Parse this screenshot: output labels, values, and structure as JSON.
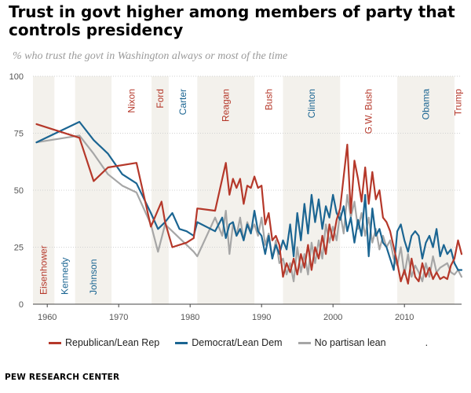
{
  "title": "Trust in govt higher among members of party that controls presidency",
  "subtitle": "% who trust the govt in Washington always or most of the time",
  "footer": "PEW RESEARCH CENTER",
  "legend_extra": ".",
  "colors": {
    "republican": "#b5382a",
    "democrat": "#1b6592",
    "no_partisan": "#a6a6a6",
    "shade": "#f3f1ec",
    "axis_text": "#555555",
    "grid": "#d2d2d2"
  },
  "chart_data": {
    "type": "line",
    "title": "Trust in govt higher among members of party that controls presidency",
    "subtitle": "% who trust the govt in Washington always or most of the time",
    "xlim": [
      1958,
      2018
    ],
    "ylim": [
      0,
      100
    ],
    "x_ticks": [
      1960,
      1970,
      1980,
      1990,
      2000,
      2010
    ],
    "y_ticks": [
      0,
      25,
      50,
      75,
      100
    ],
    "grid": true,
    "legend_position": "bottom",
    "presidents": [
      {
        "name": "Eisenhower",
        "party": "R",
        "start": 1958,
        "end": 1961,
        "shaded": true
      },
      {
        "name": "Kennedy",
        "party": "D",
        "start": 1961,
        "end": 1963.9,
        "shaded": false
      },
      {
        "name": "Johnson",
        "party": "D",
        "start": 1963.9,
        "end": 1969,
        "shaded": true
      },
      {
        "name": "Nixon",
        "party": "R",
        "start": 1969,
        "end": 1974.6,
        "shaded": false
      },
      {
        "name": "Ford",
        "party": "R",
        "start": 1974.6,
        "end": 1977,
        "shaded": true
      },
      {
        "name": "Carter",
        "party": "D",
        "start": 1977,
        "end": 1981,
        "shaded": false
      },
      {
        "name": "Reagan",
        "party": "R",
        "start": 1981,
        "end": 1989,
        "shaded": true
      },
      {
        "name": "Bush",
        "party": "R",
        "start": 1989,
        "end": 1993,
        "shaded": false
      },
      {
        "name": "Clinton",
        "party": "D",
        "start": 1993,
        "end": 2001,
        "shaded": true
      },
      {
        "name": "G.W. Bush",
        "party": "R",
        "start": 2001,
        "end": 2009,
        "shaded": false
      },
      {
        "name": "Obama",
        "party": "D",
        "start": 2009,
        "end": 2017,
        "shaded": true
      },
      {
        "name": "Trump",
        "party": "R",
        "start": 2017,
        "end": 2018,
        "shaded": false
      }
    ],
    "series": [
      {
        "name": "Republican/Lean Rep",
        "color": "#b5382a",
        "x": [
          1958.5,
          1964.5,
          1966.5,
          1968.5,
          1972.5,
          1974.5,
          1976.0,
          1976.5,
          1977.5,
          1978.5,
          1979.5,
          1980.5,
          1981.0,
          1983.5,
          1984.5,
          1985.0,
          1985.5,
          1986.0,
          1986.5,
          1987.0,
          1987.5,
          1988.0,
          1988.5,
          1989.0,
          1989.5,
          1990.0,
          1990.5,
          1991.0,
          1991.5,
          1992.0,
          1992.5,
          1993.0,
          1993.5,
          1994.0,
          1994.5,
          1995.0,
          1995.5,
          1996.0,
          1996.5,
          1997.0,
          1997.5,
          1998.0,
          1998.5,
          1999.0,
          1999.5,
          2000.0,
          2000.5,
          2001.0,
          2001.5,
          2002.0,
          2002.5,
          2003.0,
          2003.5,
          2004.0,
          2004.5,
          2005.0,
          2005.5,
          2006.0,
          2006.5,
          2007.0,
          2007.5,
          2008.0,
          2008.5,
          2009.0,
          2009.5,
          2010.0,
          2010.5,
          2011.0,
          2011.5,
          2012.0,
          2012.5,
          2013.0,
          2013.5,
          2014.0,
          2014.5,
          2015.0,
          2015.5,
          2016.0,
          2016.5,
          2017.0,
          2017.5,
          2018.0
        ],
        "y": [
          79,
          73,
          54,
          60,
          62,
          34,
          45,
          36,
          25,
          26,
          27,
          29,
          42,
          41,
          55,
          62,
          48,
          55,
          51,
          55,
          44,
          52,
          51,
          56,
          51,
          52,
          35,
          40,
          28,
          30,
          26,
          12,
          18,
          14,
          20,
          13,
          22,
          16,
          26,
          15,
          25,
          20,
          30,
          22,
          35,
          28,
          37,
          42,
          56,
          70,
          40,
          63,
          55,
          45,
          60,
          44,
          58,
          46,
          50,
          38,
          36,
          32,
          25,
          18,
          10,
          15,
          9,
          20,
          12,
          10,
          18,
          12,
          16,
          11,
          14,
          11,
          12,
          11,
          17,
          20,
          28,
          22
        ]
      },
      {
        "name": "Democrat/Lean Dem",
        "color": "#1b6592",
        "x": [
          1958.5,
          1964.5,
          1966.5,
          1968.5,
          1970.5,
          1972.5,
          1974.5,
          1975.5,
          1976.5,
          1977.5,
          1978.5,
          1979.5,
          1980.5,
          1981.0,
          1983.5,
          1984.5,
          1985.0,
          1985.5,
          1986.0,
          1986.5,
          1987.0,
          1987.5,
          1988.0,
          1988.5,
          1989.0,
          1989.5,
          1990.0,
          1990.5,
          1991.0,
          1991.5,
          1992.0,
          1992.5,
          1993.0,
          1993.5,
          1994.0,
          1994.5,
          1995.0,
          1995.5,
          1996.0,
          1996.5,
          1997.0,
          1997.5,
          1998.0,
          1998.5,
          1999.0,
          1999.5,
          2000.0,
          2000.5,
          2001.0,
          2001.5,
          2002.0,
          2002.5,
          2003.0,
          2003.5,
          2004.0,
          2004.5,
          2005.0,
          2005.5,
          2006.0,
          2006.5,
          2007.0,
          2007.5,
          2008.0,
          2008.5,
          2009.0,
          2009.5,
          2010.0,
          2010.5,
          2011.0,
          2011.5,
          2012.0,
          2012.5,
          2013.0,
          2013.5,
          2014.0,
          2014.5,
          2015.0,
          2015.5,
          2016.0,
          2016.5,
          2017.0,
          2017.5,
          2018.0
        ],
        "y": [
          71,
          80,
          72,
          66,
          57,
          53,
          40,
          33,
          36,
          40,
          33,
          32,
          30,
          36,
          32,
          38,
          29,
          35,
          36,
          30,
          33,
          28,
          35,
          31,
          41,
          32,
          30,
          22,
          30,
          20,
          26,
          22,
          28,
          24,
          35,
          21,
          40,
          28,
          44,
          31,
          48,
          36,
          46,
          33,
          43,
          38,
          48,
          40,
          37,
          43,
          32,
          38,
          27,
          37,
          30,
          48,
          21,
          42,
          30,
          33,
          27,
          25,
          20,
          15,
          32,
          35,
          28,
          23,
          30,
          32,
          30,
          20,
          27,
          30,
          25,
          33,
          21,
          26,
          22,
          24,
          18,
          15,
          15
        ]
      },
      {
        "name": "No partisan lean",
        "color": "#a6a6a6",
        "x": [
          1958.5,
          1964.5,
          1966.5,
          1968.5,
          1970.5,
          1972.5,
          1974.5,
          1975.5,
          1976.5,
          1977.5,
          1978.5,
          1979.5,
          1980.5,
          1981.0,
          1983.5,
          1984.5,
          1985.0,
          1985.5,
          1986.0,
          1986.5,
          1987.0,
          1987.5,
          1988.0,
          1988.5,
          1989.0,
          1989.5,
          1990.0,
          1990.5,
          1991.0,
          1991.5,
          1992.0,
          1992.5,
          1993.0,
          1993.5,
          1994.0,
          1994.5,
          1995.0,
          1995.5,
          1996.0,
          1996.5,
          1997.0,
          1997.5,
          1998.0,
          1998.5,
          1999.0,
          1999.5,
          2000.0,
          2000.5,
          2001.0,
          2001.5,
          2002.0,
          2002.5,
          2003.0,
          2003.5,
          2004.0,
          2004.5,
          2005.0,
          2005.5,
          2006.0,
          2006.5,
          2007.0,
          2007.5,
          2008.0,
          2008.5,
          2009.0,
          2009.5,
          2010.0,
          2010.5,
          2011.0,
          2011.5,
          2012.0,
          2012.5,
          2013.0,
          2013.5,
          2014.0,
          2014.5,
          2015.0,
          2015.5,
          2016.0,
          2016.5,
          2017.0,
          2017.5,
          2018.0
        ],
        "y": [
          71,
          74,
          66,
          57,
          52,
          49,
          35,
          23,
          35,
          32,
          29,
          26,
          23,
          21,
          38,
          30,
          41,
          22,
          35,
          30,
          38,
          28,
          36,
          32,
          35,
          30,
          38,
          26,
          31,
          20,
          28,
          18,
          20,
          13,
          18,
          10,
          25,
          14,
          22,
          13,
          27,
          18,
          28,
          20,
          35,
          27,
          34,
          28,
          40,
          31,
          48,
          38,
          45,
          33,
          40,
          30,
          38,
          27,
          33,
          24,
          30,
          25,
          28,
          20,
          17,
          25,
          13,
          22,
          12,
          17,
          14,
          10,
          18,
          12,
          21,
          14,
          16,
          17,
          18,
          14,
          13,
          15,
          12
        ]
      }
    ]
  }
}
